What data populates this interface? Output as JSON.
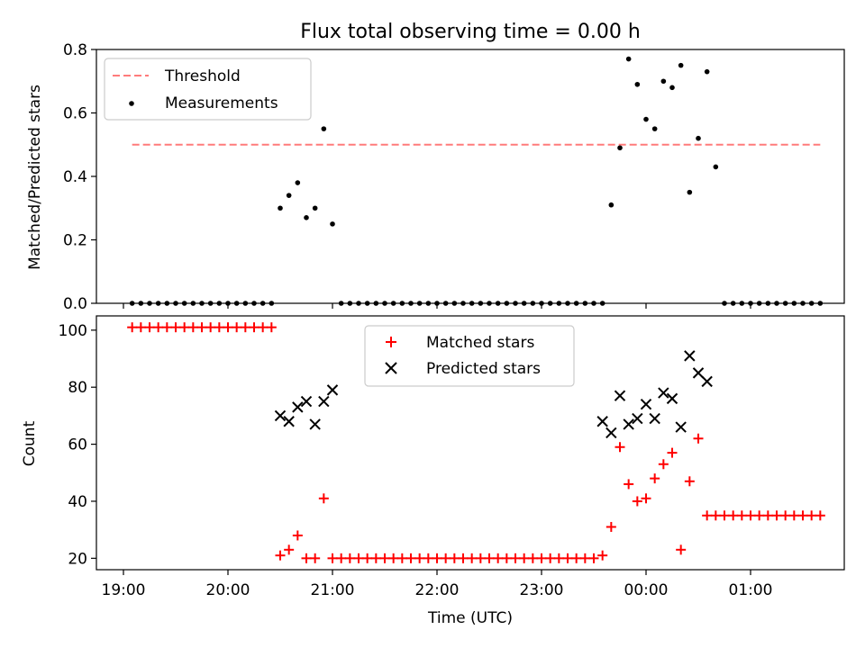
{
  "chart_data": [
    {
      "type": "scatter",
      "title": "Flux total observing time = 0.00 h",
      "xlabel": "",
      "ylabel": "Matched/Predicted stars",
      "ylim": [
        0,
        0.8
      ],
      "yticks": [
        "0.0",
        "0.2",
        "0.4",
        "0.6",
        "0.8"
      ],
      "grid": false,
      "legend": "top-left",
      "threshold": {
        "name": "Threshold",
        "value": 0.5,
        "x_start": "19:05",
        "x_end": "01:40",
        "color": "#ff7b7b"
      },
      "series": [
        {
          "name": "Measurements",
          "color": "#000000",
          "points": [
            [
              "19:05",
              0
            ],
            [
              "19:10",
              0
            ],
            [
              "19:15",
              0
            ],
            [
              "19:20",
              0
            ],
            [
              "19:25",
              0
            ],
            [
              "19:30",
              0
            ],
            [
              "19:35",
              0
            ],
            [
              "19:40",
              0
            ],
            [
              "19:45",
              0
            ],
            [
              "19:50",
              0
            ],
            [
              "19:55",
              0
            ],
            [
              "20:00",
              0
            ],
            [
              "20:05",
              0
            ],
            [
              "20:10",
              0
            ],
            [
              "20:15",
              0
            ],
            [
              "20:20",
              0
            ],
            [
              "20:25",
              0
            ],
            [
              "20:30",
              0.3
            ],
            [
              "20:35",
              0.34
            ],
            [
              "20:40",
              0.38
            ],
            [
              "20:45",
              0.27
            ],
            [
              "20:50",
              0.3
            ],
            [
              "20:55",
              0.55
            ],
            [
              "21:00",
              0.25
            ],
            [
              "21:05",
              0
            ],
            [
              "21:10",
              0
            ],
            [
              "21:15",
              0
            ],
            [
              "21:20",
              0
            ],
            [
              "21:25",
              0
            ],
            [
              "21:30",
              0
            ],
            [
              "21:35",
              0
            ],
            [
              "21:40",
              0
            ],
            [
              "21:45",
              0
            ],
            [
              "21:50",
              0
            ],
            [
              "21:55",
              0
            ],
            [
              "22:00",
              0
            ],
            [
              "22:05",
              0
            ],
            [
              "22:10",
              0
            ],
            [
              "22:15",
              0
            ],
            [
              "22:20",
              0
            ],
            [
              "22:25",
              0
            ],
            [
              "22:30",
              0
            ],
            [
              "22:35",
              0
            ],
            [
              "22:40",
              0
            ],
            [
              "22:45",
              0
            ],
            [
              "22:50",
              0
            ],
            [
              "22:55",
              0
            ],
            [
              "23:00",
              0
            ],
            [
              "23:05",
              0
            ],
            [
              "23:10",
              0
            ],
            [
              "23:15",
              0
            ],
            [
              "23:20",
              0
            ],
            [
              "23:25",
              0
            ],
            [
              "23:30",
              0
            ],
            [
              "23:35",
              0
            ],
            [
              "23:40",
              0.31
            ],
            [
              "23:45",
              0.49
            ],
            [
              "23:50",
              0.77
            ],
            [
              "23:55",
              0.69
            ],
            [
              "00:00",
              0.58
            ],
            [
              "00:05",
              0.55
            ],
            [
              "00:10",
              0.7
            ],
            [
              "00:15",
              0.68
            ],
            [
              "00:20",
              0.75
            ],
            [
              "00:25",
              0.35
            ],
            [
              "00:30",
              0.52
            ],
            [
              "00:35",
              0.73
            ],
            [
              "00:40",
              0.43
            ],
            [
              "00:45",
              0
            ],
            [
              "00:50",
              0
            ],
            [
              "00:55",
              0
            ],
            [
              "01:00",
              0
            ],
            [
              "01:05",
              0
            ],
            [
              "01:10",
              0
            ],
            [
              "01:15",
              0
            ],
            [
              "01:20",
              0
            ],
            [
              "01:25",
              0
            ],
            [
              "01:30",
              0
            ],
            [
              "01:35",
              0
            ],
            [
              "01:40",
              0
            ]
          ]
        }
      ]
    },
    {
      "type": "scatter",
      "title": "",
      "xlabel": "Time (UTC)",
      "ylabel": "Count",
      "ylim": [
        16,
        105
      ],
      "yticks": [
        "20",
        "40",
        "60",
        "80",
        "100"
      ],
      "xticks": [
        "19:00",
        "20:00",
        "21:00",
        "22:00",
        "23:00",
        "00:00",
        "01:00"
      ],
      "grid": false,
      "legend": "top-center",
      "series": [
        {
          "name": "Matched stars",
          "marker": "plus",
          "color": "#ff0000",
          "points": [
            [
              "19:05",
              101
            ],
            [
              "19:10",
              101
            ],
            [
              "19:15",
              101
            ],
            [
              "19:20",
              101
            ],
            [
              "19:25",
              101
            ],
            [
              "19:30",
              101
            ],
            [
              "19:35",
              101
            ],
            [
              "19:40",
              101
            ],
            [
              "19:45",
              101
            ],
            [
              "19:50",
              101
            ],
            [
              "19:55",
              101
            ],
            [
              "20:00",
              101
            ],
            [
              "20:05",
              101
            ],
            [
              "20:10",
              101
            ],
            [
              "20:15",
              101
            ],
            [
              "20:20",
              101
            ],
            [
              "20:25",
              101
            ],
            [
              "20:30",
              21
            ],
            [
              "20:35",
              23
            ],
            [
              "20:40",
              28
            ],
            [
              "20:45",
              20
            ],
            [
              "20:50",
              20
            ],
            [
              "20:55",
              41
            ],
            [
              "21:00",
              20
            ],
            [
              "21:05",
              20
            ],
            [
              "21:10",
              20
            ],
            [
              "21:15",
              20
            ],
            [
              "21:20",
              20
            ],
            [
              "21:25",
              20
            ],
            [
              "21:30",
              20
            ],
            [
              "21:35",
              20
            ],
            [
              "21:40",
              20
            ],
            [
              "21:45",
              20
            ],
            [
              "21:50",
              20
            ],
            [
              "21:55",
              20
            ],
            [
              "22:00",
              20
            ],
            [
              "22:05",
              20
            ],
            [
              "22:10",
              20
            ],
            [
              "22:15",
              20
            ],
            [
              "22:20",
              20
            ],
            [
              "22:25",
              20
            ],
            [
              "22:30",
              20
            ],
            [
              "22:35",
              20
            ],
            [
              "22:40",
              20
            ],
            [
              "22:45",
              20
            ],
            [
              "22:50",
              20
            ],
            [
              "22:55",
              20
            ],
            [
              "23:00",
              20
            ],
            [
              "23:05",
              20
            ],
            [
              "23:10",
              20
            ],
            [
              "23:15",
              20
            ],
            [
              "23:20",
              20
            ],
            [
              "23:25",
              20
            ],
            [
              "23:30",
              20
            ],
            [
              "23:35",
              21
            ],
            [
              "23:40",
              31
            ],
            [
              "23:45",
              59
            ],
            [
              "23:50",
              46
            ],
            [
              "23:55",
              40
            ],
            [
              "00:00",
              41
            ],
            [
              "00:05",
              48
            ],
            [
              "00:10",
              53
            ],
            [
              "00:15",
              57
            ],
            [
              "00:20",
              23
            ],
            [
              "00:25",
              47
            ],
            [
              "00:30",
              62
            ],
            [
              "00:35",
              35
            ],
            [
              "00:40",
              35
            ],
            [
              "00:45",
              35
            ],
            [
              "00:50",
              35
            ],
            [
              "00:55",
              35
            ],
            [
              "01:00",
              35
            ],
            [
              "01:05",
              35
            ],
            [
              "01:10",
              35
            ],
            [
              "01:15",
              35
            ],
            [
              "01:20",
              35
            ],
            [
              "01:25",
              35
            ],
            [
              "01:30",
              35
            ],
            [
              "01:35",
              35
            ],
            [
              "01:40",
              35
            ]
          ]
        },
        {
          "name": "Predicted stars",
          "marker": "x",
          "color": "#000000",
          "points": [
            [
              "20:30",
              70
            ],
            [
              "20:35",
              68
            ],
            [
              "20:40",
              73
            ],
            [
              "20:45",
              75
            ],
            [
              "20:50",
              67
            ],
            [
              "20:55",
              75
            ],
            [
              "21:00",
              79
            ],
            [
              "23:35",
              68
            ],
            [
              "23:40",
              64
            ],
            [
              "23:45",
              77
            ],
            [
              "23:50",
              67
            ],
            [
              "23:55",
              69
            ],
            [
              "00:00",
              74
            ],
            [
              "00:05",
              69
            ],
            [
              "00:10",
              78
            ],
            [
              "00:15",
              76
            ],
            [
              "00:20",
              66
            ],
            [
              "00:25",
              91
            ],
            [
              "00:30",
              85
            ],
            [
              "00:35",
              82
            ]
          ]
        }
      ]
    }
  ]
}
